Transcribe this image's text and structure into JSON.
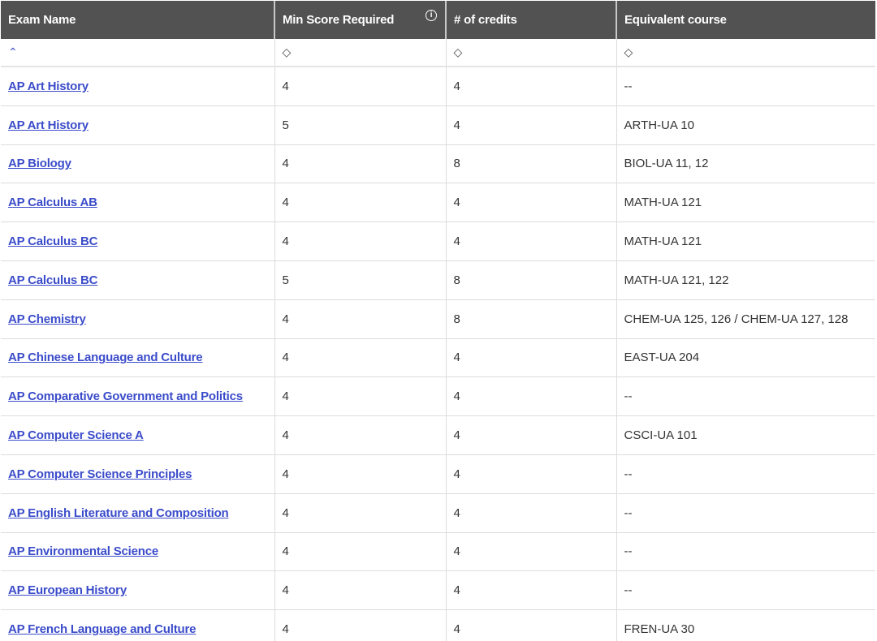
{
  "headers": [
    "Exam Name",
    "Min Score Required",
    "# of credits",
    "Equivalent course"
  ],
  "sort_icons": [
    "chevron-up-icon",
    "sort-diamond-icon",
    "sort-diamond-icon",
    "sort-diamond-icon"
  ],
  "accent": "#3b4cca",
  "rows": [
    [
      "AP Art History",
      "4",
      "4",
      "--"
    ],
    [
      "AP Art History",
      "5",
      "4",
      "ARTH-UA 10"
    ],
    [
      "AP Biology",
      "4",
      "8",
      "BIOL-UA 11, 12"
    ],
    [
      "AP Calculus AB",
      "4",
      "4",
      "MATH-UA 121"
    ],
    [
      "AP Calculus BC",
      "4",
      "4",
      "MATH-UA 121"
    ],
    [
      "AP Calculus BC",
      "5",
      "8",
      "MATH-UA 121, 122"
    ],
    [
      "AP Chemistry",
      "4",
      "8",
      "CHEM-UA 125, 126 / CHEM-UA 127, 128"
    ],
    [
      "AP Chinese Language and Culture",
      "4",
      "4",
      "EAST-UA 204"
    ],
    [
      "AP Comparative Government and Politics",
      "4",
      "4",
      "--"
    ],
    [
      "AP Computer Science A",
      "4",
      "4",
      "CSCI-UA 101"
    ],
    [
      "AP Computer Science Principles",
      "4",
      "4",
      "--"
    ],
    [
      "AP English Literature and Composition",
      "4",
      "4",
      "--"
    ],
    [
      "AP Environmental Science",
      "4",
      "4",
      "--"
    ],
    [
      "AP European History",
      "4",
      "4",
      "--"
    ],
    [
      "AP French Language and Culture",
      "4",
      "4",
      "FREN-UA 30"
    ]
  ]
}
